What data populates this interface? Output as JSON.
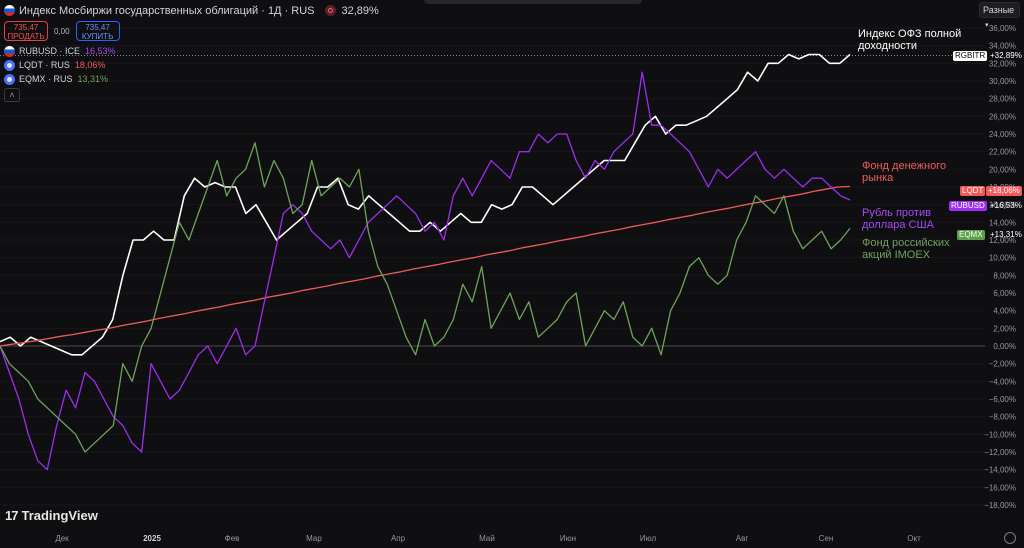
{
  "main_series": {
    "title": "Индекс Мосбиржи государственных облигаций · 1Д · RUS",
    "change": "32,89%"
  },
  "trade": {
    "sell_price": "735,47",
    "sell_label": "ПРОДАТЬ",
    "spread": "0,00",
    "buy_price": "735,47",
    "buy_label": "КУПИТЬ"
  },
  "legend": [
    {
      "symbol": "RUBUSD · ICE",
      "value": "16,53%",
      "color": "#a24bf0"
    },
    {
      "symbol": "LQDT · RUS",
      "value": "18,06%",
      "color": "#f05a5a"
    },
    {
      "symbol": "EQMX · RUS",
      "value": "13,31%",
      "color": "#6fa35a"
    }
  ],
  "collapse_glyph": "˄",
  "scale_mode": "Разные",
  "brand": "TradingView",
  "annotations": {
    "ofz": "Индекс ОФЗ полной доходности",
    "money": "Фонд денежного рынка",
    "rub": "Рубль против доллара США",
    "stocks": "Фонд российских акций IMOEX"
  },
  "price_tags": [
    {
      "ticker": "RGBITR",
      "value": "+32,89%",
      "color": "#ffffff",
      "text_color": "#000000"
    },
    {
      "ticker": "LQDT",
      "value": "+18,06%",
      "color": "#f05a5a",
      "text_color": "#ffffff"
    },
    {
      "ticker": "RUBUSD",
      "value": "+16,53%",
      "color": "#9c2ef0",
      "text_color": "#ffffff"
    },
    {
      "ticker": "EQMX",
      "value": "+13,31%",
      "color": "#5c9f4a",
      "text_color": "#ffffff"
    }
  ],
  "chart_data": {
    "type": "line",
    "ylim": [
      -18,
      36
    ],
    "y_ticks": [
      "36,00%",
      "34,00%",
      "32,00%",
      "30,00%",
      "28,00%",
      "26,00%",
      "24,00%",
      "22,00%",
      "20,00%",
      "18,00%",
      "16,00%",
      "14,00%",
      "12,00%",
      "10,00%",
      "8,00%",
      "6,00%",
      "4,00%",
      "2,00%",
      "0,00%",
      "−2,00%",
      "−4,00%",
      "−6,00%",
      "−8,00%",
      "−10,00%",
      "−12,00%",
      "−14,00%",
      "−16,00%",
      "−18,00%"
    ],
    "x_labels": [
      "Дек",
      "2025",
      "Фев",
      "Мар",
      "Апр",
      "Май",
      "Июн",
      "Июл",
      "Авг",
      "Сен",
      "Окт"
    ],
    "series": [
      {
        "name": "RGBITR",
        "color": "#ffffff",
        "values": [
          0.5,
          1,
          0,
          1,
          0.5,
          0,
          -0.5,
          -1,
          -1,
          0,
          1,
          3,
          8,
          12,
          12,
          13,
          12,
          12,
          17,
          19,
          18,
          18.5,
          18,
          18,
          15,
          16,
          14,
          12,
          13,
          14,
          15,
          18,
          18,
          19,
          16,
          15.5,
          17,
          16,
          15,
          14,
          13,
          13,
          14,
          13,
          14,
          15,
          14,
          14,
          16,
          15.5,
          16,
          18,
          18,
          17,
          16,
          17,
          18,
          19,
          20,
          21,
          21,
          21,
          23,
          25,
          26,
          24,
          25,
          25,
          25.5,
          26,
          27,
          28,
          29,
          31,
          30,
          32,
          32,
          33,
          32.5,
          33,
          33,
          32,
          32,
          33
        ]
      },
      {
        "name": "LQDT",
        "color": "#f05a5a",
        "values": [
          0,
          0.2,
          0.4,
          0.6,
          0.85,
          1.1,
          1.3,
          1.55,
          1.8,
          2,
          2.3,
          2.55,
          2.8,
          3.1,
          3.35,
          3.6,
          3.9,
          4.15,
          4.4,
          4.7,
          4.95,
          5.2,
          5.5,
          5.75,
          6,
          6.3,
          6.55,
          6.8,
          7.1,
          7.35,
          7.6,
          7.9,
          8.15,
          8.4,
          8.7,
          8.95,
          9.2,
          9.5,
          9.75,
          10,
          10.3,
          10.55,
          10.8,
          11.1,
          11.35,
          11.6,
          11.9,
          12.15,
          12.4,
          12.7,
          12.95,
          13.2,
          13.5,
          13.75,
          14,
          14.3,
          14.55,
          14.8,
          15.1,
          15.35,
          15.6,
          15.9,
          16.15,
          16.4,
          16.7,
          16.95,
          17.2,
          17.5,
          17.75,
          18,
          18.06
        ]
      },
      {
        "name": "RUBUSD",
        "color": "#9c2ef0",
        "values": [
          0,
          -3,
          -6,
          -10,
          -13,
          -14,
          -9,
          -5,
          -7,
          -3,
          -4,
          -6,
          -8,
          -9,
          -11,
          -12,
          -2,
          -4,
          -6,
          -5,
          -3,
          -1,
          0,
          -2,
          0,
          2,
          -1,
          0,
          5,
          10,
          15,
          16,
          15,
          13,
          12,
          11,
          12,
          10,
          12,
          14,
          15,
          16,
          17,
          16,
          15,
          13,
          14,
          12,
          17,
          19,
          17,
          19,
          21,
          20,
          19,
          22,
          22,
          24,
          23,
          24,
          24,
          21,
          19,
          21,
          20,
          22,
          23,
          24,
          31,
          25,
          25,
          24,
          23,
          22,
          20,
          18,
          20,
          19,
          20,
          21,
          22,
          20,
          19,
          20,
          19,
          18,
          19,
          19,
          18,
          17,
          16.53
        ]
      },
      {
        "name": "EQMX",
        "color": "#6fa35a",
        "values": [
          0,
          -2,
          -3,
          -4,
          -6,
          -7,
          -8,
          -9,
          -10,
          -12,
          -11,
          -10,
          -9,
          -2,
          -4,
          0,
          2,
          6,
          10,
          14,
          12,
          15,
          18,
          21,
          17,
          19,
          20,
          23,
          18,
          21,
          19,
          15,
          16,
          21,
          17,
          18,
          19,
          18,
          20,
          13,
          9,
          7,
          4,
          1,
          -1,
          3,
          0,
          1,
          3,
          7,
          5,
          9,
          2,
          4,
          6,
          3,
          5,
          1,
          2,
          3,
          5,
          6,
          0,
          2,
          4,
          3,
          5,
          1,
          0,
          2,
          -1,
          4,
          6,
          9,
          10,
          8,
          7,
          8,
          12,
          14,
          17,
          16,
          15,
          17,
          13,
          11,
          12,
          13,
          11,
          12,
          13.31
        ]
      }
    ]
  }
}
